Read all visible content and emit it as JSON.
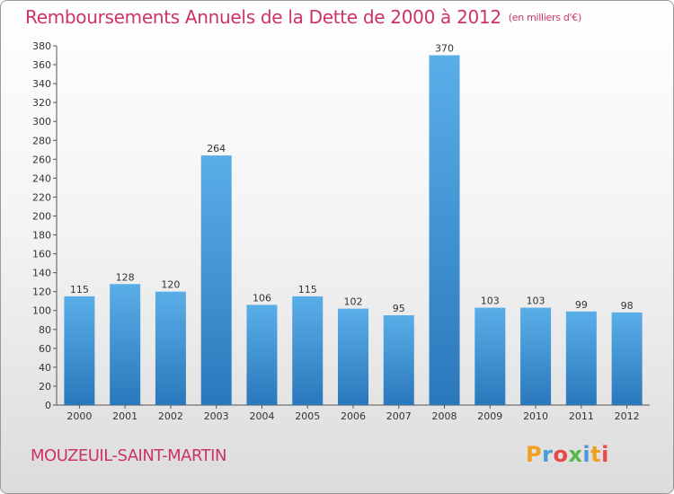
{
  "title": "Remboursements Annuels de la Dette de 2000 à 2012",
  "subtitle": "(en milliers d'€)",
  "commune": "MOUZEUIL-SAINT-MARTIN",
  "logo": {
    "letters": [
      "P",
      "r",
      "o",
      "x",
      "i",
      "t",
      "i"
    ],
    "colors": [
      "#f0a020",
      "#4a9ad8",
      "#e84848",
      "#58b848",
      "#4a9ad8",
      "#f0a020",
      "#e84848"
    ]
  },
  "chart_data": {
    "type": "bar",
    "categories": [
      "2000",
      "2001",
      "2002",
      "2003",
      "2004",
      "2005",
      "2006",
      "2007",
      "2008",
      "2009",
      "2010",
      "2011",
      "2012"
    ],
    "values": [
      115,
      128,
      120,
      264,
      106,
      115,
      102,
      95,
      370,
      103,
      103,
      99,
      98
    ],
    "title": "Remboursements Annuels de la Dette de 2000 à 2012",
    "xlabel": "",
    "ylabel": "",
    "ylim": [
      0,
      380
    ],
    "ytick_step": 20,
    "grid": false,
    "bar_color_top": "#5aaee8",
    "bar_color_bottom": "#2a78bc"
  }
}
